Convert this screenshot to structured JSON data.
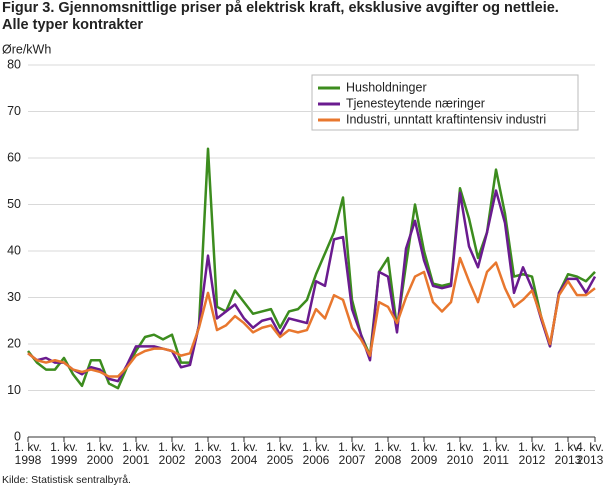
{
  "chart_data": {
    "type": "line",
    "title": "Figur 3. Gjennomsnittlige priser på elektrisk kraft, eksklusive avgifter og nettleie.\nAlle typer kontrakter",
    "y_label": "Øre/kWh",
    "source": "Kilde: Statistisk sentralbyrå.",
    "categories": [
      "1. kv.\n1998",
      null,
      null,
      null,
      "1. kv.\n1999",
      null,
      null,
      null,
      "1. kv.\n2000",
      null,
      null,
      null,
      "1. kv.\n2001",
      null,
      null,
      null,
      "1. kv.\n2002",
      null,
      null,
      null,
      "1. kv.\n2003",
      null,
      null,
      null,
      "1. kv.\n2004",
      null,
      null,
      null,
      "1. kv.\n2005",
      null,
      null,
      null,
      "1. kv.\n2006",
      null,
      null,
      null,
      "1. kv.\n2007",
      null,
      null,
      null,
      "1. kv.\n2008",
      null,
      null,
      null,
      "1. kv.\n2009",
      null,
      null,
      null,
      "1. kv.\n2010",
      null,
      null,
      null,
      "1. kv.\n2011",
      null,
      null,
      null,
      "1. kv.\n2012",
      null,
      null,
      null,
      "1. kv.\n2013",
      null,
      null,
      "4. kv.\n2013"
    ],
    "series": [
      {
        "name": "Husholdninger",
        "color": "#3c8c1e",
        "values": [
          18.5,
          16,
          14.5,
          14.5,
          17,
          13.5,
          11,
          16.5,
          16.5,
          11.5,
          10.5,
          15,
          18.5,
          21.5,
          22,
          21,
          22,
          16,
          16,
          24,
          62,
          28,
          27,
          31.5,
          29,
          26.5,
          27,
          27.5,
          23.5,
          27,
          27.5,
          29.5,
          35,
          39.5,
          44,
          51.5,
          29.5,
          22,
          17.5,
          35.5,
          38.5,
          23.5,
          37,
          50,
          40,
          33,
          32.5,
          33,
          53.5,
          47,
          38.5,
          44,
          57.5,
          48,
          34.5,
          35,
          34.5,
          26,
          19.5,
          31,
          35,
          34.5,
          33.5,
          35.5
        ]
      },
      {
        "name": "Tjenesteytende næringer",
        "color": "#6a1b8f",
        "values": [
          18,
          16.5,
          17,
          16,
          16,
          14.5,
          13.5,
          15,
          14.5,
          12.5,
          12,
          15.5,
          19.5,
          19.5,
          19.5,
          19,
          18.5,
          15,
          15.5,
          24,
          39,
          25.5,
          27,
          28.5,
          25.5,
          23.5,
          25,
          25.5,
          22,
          25.5,
          25,
          24.5,
          33.5,
          32.5,
          42.5,
          43,
          27.5,
          22,
          16.5,
          35.5,
          34.5,
          22.5,
          40.5,
          46.5,
          38,
          32.5,
          32,
          32.5,
          52.5,
          41,
          36.5,
          44,
          53,
          46,
          31,
          36.5,
          32,
          25.5,
          19.5,
          31,
          34,
          34,
          31,
          34.5
        ]
      },
      {
        "name": "Industri, unntatt kraftintensiv industri",
        "color": "#e8772e",
        "values": [
          18,
          16.5,
          16,
          16.5,
          16,
          14.5,
          14,
          14.5,
          14,
          13,
          13,
          15,
          17.5,
          18.5,
          19,
          19,
          18.5,
          17.5,
          18,
          23.5,
          31,
          23,
          24,
          26,
          24.5,
          22.5,
          23.5,
          24,
          21.5,
          23,
          22.5,
          23,
          27.5,
          25.5,
          30.5,
          29.5,
          23.5,
          21,
          17.5,
          29,
          28,
          24.5,
          30,
          34.5,
          35.5,
          29,
          27,
          29,
          38.5,
          33.5,
          29,
          35.5,
          37.5,
          32,
          28,
          29.5,
          31.5,
          26,
          20,
          30.5,
          33.5,
          30.5,
          30.5,
          32
        ]
      }
    ],
    "ylim": [
      0,
      80
    ],
    "yticks": [
      0,
      10,
      20,
      30,
      40,
      50,
      60,
      70,
      80
    ],
    "grid": true,
    "legend": "upper right"
  }
}
